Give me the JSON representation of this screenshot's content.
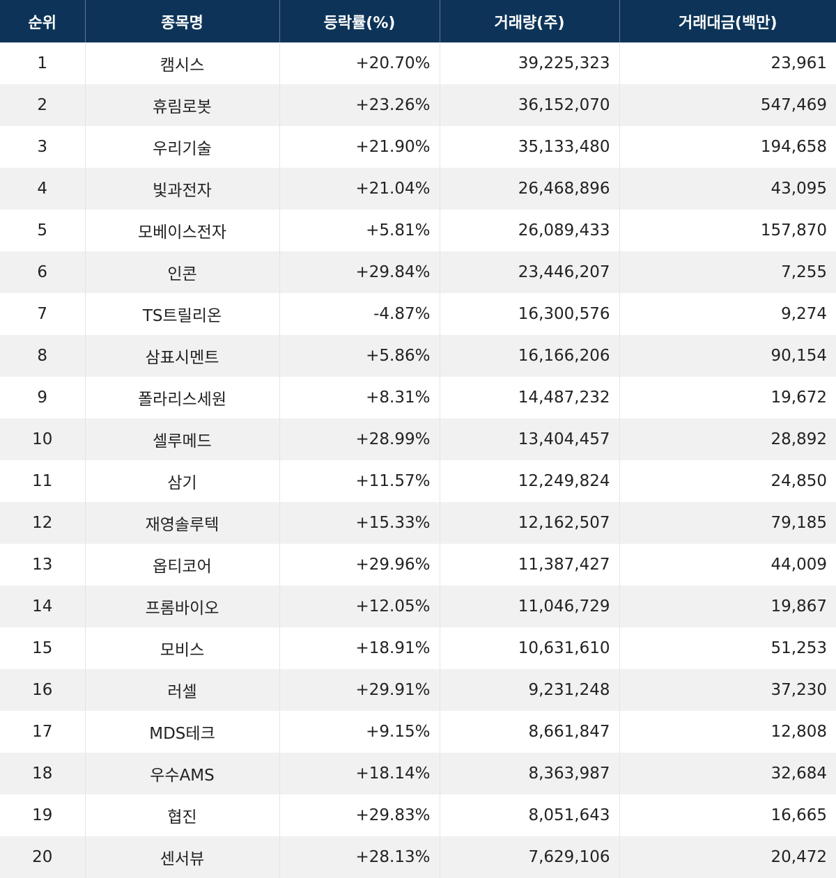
{
  "table": {
    "headers": [
      "순위",
      "종목명",
      "등락률(%)",
      "거래량(주)",
      "거래대금(백만)"
    ],
    "rows": [
      {
        "rank": "1",
        "name": "캠시스",
        "change": "+20.70%",
        "volume": "39,225,323",
        "amount": "23,961"
      },
      {
        "rank": "2",
        "name": "휴림로봇",
        "change": "+23.26%",
        "volume": "36,152,070",
        "amount": "547,469"
      },
      {
        "rank": "3",
        "name": "우리기술",
        "change": "+21.90%",
        "volume": "35,133,480",
        "amount": "194,658"
      },
      {
        "rank": "4",
        "name": "빛과전자",
        "change": "+21.04%",
        "volume": "26,468,896",
        "amount": "43,095"
      },
      {
        "rank": "5",
        "name": "모베이스전자",
        "change": "+5.81%",
        "volume": "26,089,433",
        "amount": "157,870"
      },
      {
        "rank": "6",
        "name": "인콘",
        "change": "+29.84%",
        "volume": "23,446,207",
        "amount": "7,255"
      },
      {
        "rank": "7",
        "name": "TS트릴리온",
        "change": "-4.87%",
        "volume": "16,300,576",
        "amount": "9,274"
      },
      {
        "rank": "8",
        "name": "삼표시멘트",
        "change": "+5.86%",
        "volume": "16,166,206",
        "amount": "90,154"
      },
      {
        "rank": "9",
        "name": "폴라리스세원",
        "change": "+8.31%",
        "volume": "14,487,232",
        "amount": "19,672"
      },
      {
        "rank": "10",
        "name": "셀루메드",
        "change": "+28.99%",
        "volume": "13,404,457",
        "amount": "28,892"
      },
      {
        "rank": "11",
        "name": "삼기",
        "change": "+11.57%",
        "volume": "12,249,824",
        "amount": "24,850"
      },
      {
        "rank": "12",
        "name": "재영솔루텍",
        "change": "+15.33%",
        "volume": "12,162,507",
        "amount": "79,185"
      },
      {
        "rank": "13",
        "name": "옵티코어",
        "change": "+29.96%",
        "volume": "11,387,427",
        "amount": "44,009"
      },
      {
        "rank": "14",
        "name": "프롬바이오",
        "change": "+12.05%",
        "volume": "11,046,729",
        "amount": "19,867"
      },
      {
        "rank": "15",
        "name": "모비스",
        "change": "+18.91%",
        "volume": "10,631,610",
        "amount": "51,253"
      },
      {
        "rank": "16",
        "name": "러셀",
        "change": "+29.91%",
        "volume": "9,231,248",
        "amount": "37,230"
      },
      {
        "rank": "17",
        "name": "MDS테크",
        "change": "+9.15%",
        "volume": "8,661,847",
        "amount": "12,808"
      },
      {
        "rank": "18",
        "name": "우수AMS",
        "change": "+18.14%",
        "volume": "8,363,987",
        "amount": "32,684"
      },
      {
        "rank": "19",
        "name": "협진",
        "change": "+29.83%",
        "volume": "8,051,643",
        "amount": "16,665"
      },
      {
        "rank": "20",
        "name": "센서뷰",
        "change": "+28.13%",
        "volume": "7,629,106",
        "amount": "20,472"
      }
    ]
  },
  "colors": {
    "header_background": "#0d3458",
    "header_text": "#ffffff",
    "row_alt_background": "#f1f1f1",
    "row_background": "#ffffff",
    "body_text": "#222222"
  }
}
